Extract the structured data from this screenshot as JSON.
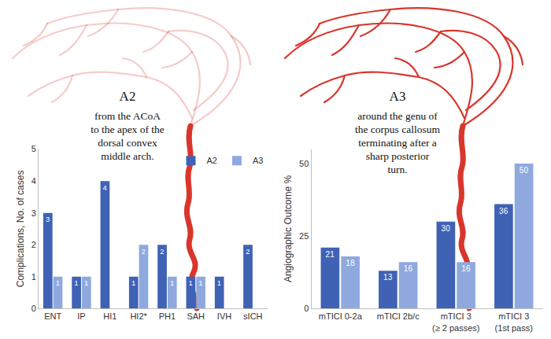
{
  "chart_data": [
    {
      "type": "bar",
      "ylabel": "Complications, No. of cases",
      "categories": [
        "ENT",
        "IP",
        "HI1",
        "HI2*",
        "PH1",
        "SAH",
        "IVH",
        "sICH"
      ],
      "series": [
        {
          "name": "A2",
          "color": "#3f62b5",
          "values": [
            3,
            1,
            4,
            1,
            2,
            1,
            1,
            2
          ]
        },
        {
          "name": "A3",
          "color": "#8fa9de",
          "values": [
            1,
            1,
            0,
            2,
            1,
            1,
            0,
            0
          ]
        }
      ],
      "ylim": [
        0,
        5
      ],
      "yticks": [
        0,
        1,
        2,
        3,
        4,
        5
      ],
      "legend": "top right",
      "data_labels": true,
      "grid": false
    },
    {
      "type": "bar",
      "ylabel": "Angiographic Outcome %",
      "categories": [
        "mTICI 0-2a",
        "mTICI 2b/c",
        "mTICI 3\n(≥ 2 passes)",
        "mTICI 3\n(1st pass)"
      ],
      "series": [
        {
          "color": "#3f62b5",
          "values": [
            21,
            13,
            30,
            36
          ]
        },
        {
          "color": "#8fa9de",
          "values": [
            18,
            16,
            16,
            50
          ]
        }
      ],
      "ylim": [
        0,
        55
      ],
      "yticks": [
        0,
        25,
        50
      ],
      "data_labels": true,
      "grid": false
    }
  ],
  "illustrations": [
    {
      "label": "A2",
      "caption": "from the ACoA\nto the apex of the\ndorsal convex\nmiddle arch."
    },
    {
      "label": "A3",
      "caption": "around the genu of\nthe corpus callosum\nterminating after a\nsharp posterior\nturn."
    }
  ]
}
